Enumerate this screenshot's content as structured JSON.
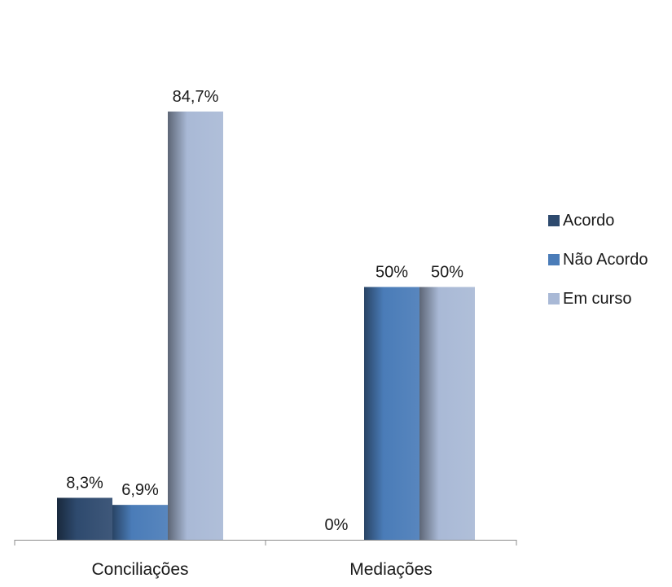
{
  "chart_data": {
    "type": "bar",
    "categories": [
      "Conciliações",
      "Mediações"
    ],
    "series": [
      {
        "name": "Acordo",
        "values": [
          8.3,
          0
        ],
        "labels": [
          "8,3%",
          "0%"
        ],
        "color": "#2e4a6e"
      },
      {
        "name": "Não Acordo",
        "values": [
          6.9,
          50
        ],
        "labels": [
          "6,9%",
          "50%"
        ],
        "color": "#4a7cb8"
      },
      {
        "name": "Em curso",
        "values": [
          84.7,
          50
        ],
        "labels": [
          "84,7%",
          "50%"
        ],
        "color": "#a9b9d6"
      }
    ],
    "ylim": [
      0,
      100
    ],
    "grid": false,
    "legend_position": "right"
  }
}
